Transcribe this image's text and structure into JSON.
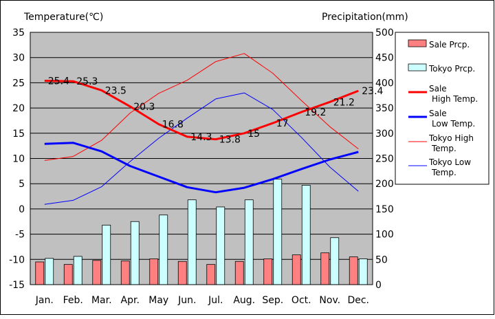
{
  "chart_data": {
    "type": "bar+line",
    "left_axis": {
      "label": "Temperature(℃)",
      "range": [
        -15,
        35
      ],
      "ticks": [
        "35",
        "30",
        "25",
        "20",
        "15",
        "10",
        "5",
        "0",
        "-5",
        "-10",
        "-15"
      ]
    },
    "right_axis": {
      "label": "Precipitation(mm)",
      "range": [
        0,
        500
      ],
      "ticks": [
        "500",
        "450",
        "400",
        "350",
        "300",
        "250",
        "200",
        "150",
        "100",
        "50",
        "0"
      ]
    },
    "categories": [
      "Jan.",
      "Feb.",
      "Mar.",
      "Apr.",
      "May",
      "Jun.",
      "Jul.",
      "Aug.",
      "Sep.",
      "Oct.",
      "Nov.",
      "Dec."
    ],
    "grid": true,
    "bars": [
      {
        "name": "Sale Prcp.",
        "color": "#ff8080",
        "values": [
          45,
          40,
          48,
          47,
          51,
          46,
          40,
          46,
          51,
          59,
          63,
          55
        ]
      },
      {
        "name": "Tokyo Prcp.",
        "color": "#ccffff",
        "values": [
          52,
          56,
          118,
          125,
          138,
          168,
          154,
          168,
          209,
          197,
          93,
          51
        ]
      }
    ],
    "lines": [
      {
        "name": "Sale High Temp.",
        "legend_lines": [
          "Sale",
          "High Temp."
        ],
        "color": "#ff0000",
        "bold": true,
        "values": [
          25.4,
          25.3,
          23.5,
          20.3,
          16.8,
          14.3,
          13.8,
          15,
          17,
          19.2,
          21.2,
          23.4
        ],
        "labels": [
          "25.4",
          "25.3",
          "23.5",
          "20.3",
          "16.8",
          "14.3",
          "13.8",
          "15",
          "17",
          "19.2",
          "21.2",
          "23.4"
        ]
      },
      {
        "name": "Sale Low Temp.",
        "legend_lines": [
          "Sale",
          "Low Temp."
        ],
        "color": "#0000ff",
        "bold": true,
        "values": [
          12.9,
          13.1,
          11.4,
          8.5,
          6.4,
          4.3,
          3.3,
          4.2,
          5.9,
          7.9,
          9.8,
          11.3
        ]
      },
      {
        "name": "Tokyo High Temp.",
        "legend_lines": [
          "Tokyo High",
          "Temp."
        ],
        "color": "#ff0000",
        "bold": false,
        "values": [
          9.6,
          10.4,
          13.6,
          19.0,
          22.9,
          25.5,
          29.2,
          30.8,
          26.9,
          21.5,
          16.3,
          11.9
        ]
      },
      {
        "name": "Tokyo Low Temp.",
        "legend_lines": [
          "Tokyo Low",
          "Temp."
        ],
        "color": "#0000ff",
        "bold": false,
        "values": [
          0.9,
          1.7,
          4.4,
          9.4,
          14.0,
          18.0,
          21.8,
          23.0,
          19.7,
          14.2,
          8.3,
          3.5
        ]
      }
    ],
    "legend": [
      {
        "kind": "box",
        "lines": [
          "Sale Prcp."
        ],
        "color": "#ff8080"
      },
      {
        "kind": "box",
        "lines": [
          "Tokyo Prcp."
        ],
        "color": "#ccffff"
      },
      {
        "kind": "line",
        "lines": [
          "Sale",
          "High Temp."
        ],
        "color": "#ff0000",
        "bold": true
      },
      {
        "kind": "line",
        "lines": [
          "Sale",
          "Low Temp."
        ],
        "color": "#0000ff",
        "bold": true
      },
      {
        "kind": "line",
        "lines": [
          "Tokyo High",
          "Temp."
        ],
        "color": "#ff0000",
        "bold": false
      },
      {
        "kind": "line",
        "lines": [
          "Tokyo Low",
          "Temp."
        ],
        "color": "#0000ff",
        "bold": false
      }
    ],
    "legend_placement": "right",
    "colors": {
      "plot_bg": "#c0c0c0",
      "grid": "#000000",
      "frame": "#000000"
    }
  }
}
